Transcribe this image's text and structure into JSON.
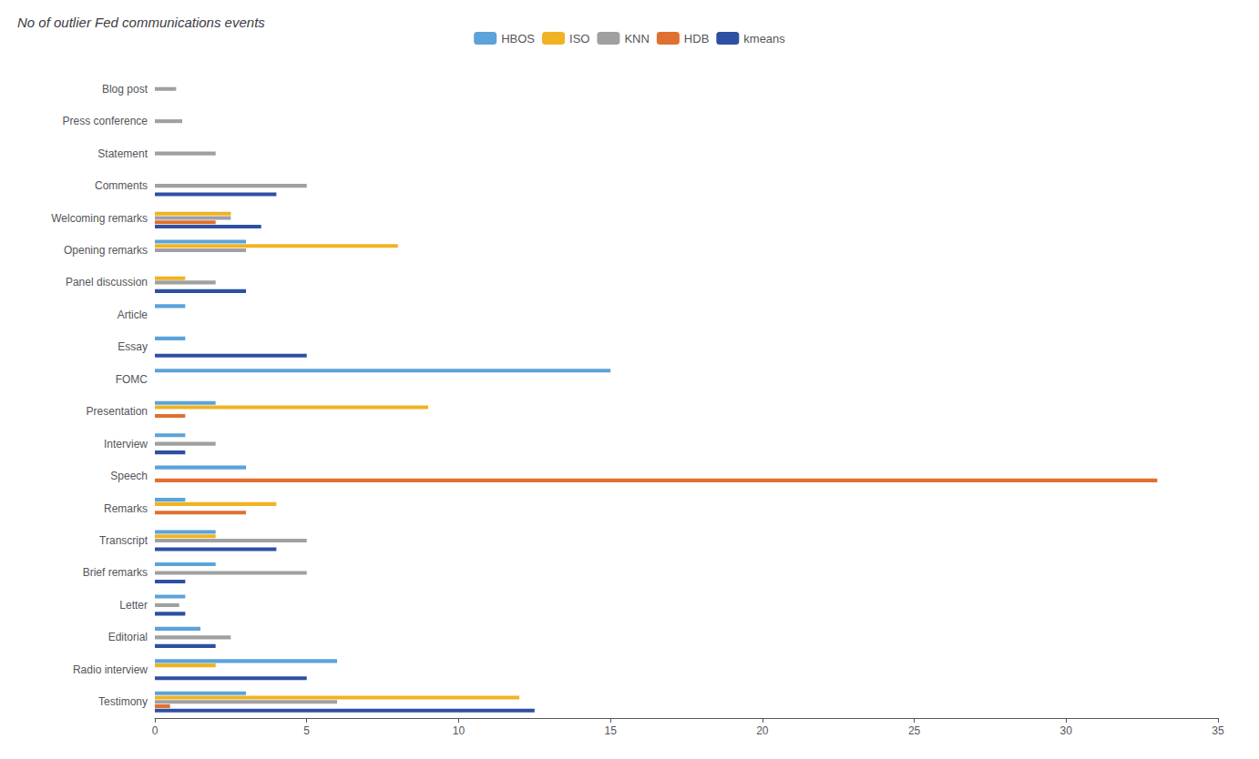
{
  "chart_data": {
    "type": "bar",
    "orientation": "horizontal",
    "title": "No of outlier Fed communications events",
    "categories": [
      "Blog post",
      "Press conference",
      "Statement",
      "Comments",
      "Welcoming remarks",
      "Opening remarks",
      "Panel discussion",
      "Article",
      "Essay",
      "FOMC",
      "Presentation",
      "Interview",
      "Speech",
      "Remarks",
      "Transcript",
      "Brief remarks",
      "Letter",
      "Editorial",
      "Radio interview",
      "Testimony"
    ],
    "series": [
      {
        "name": "HBOS",
        "color": "#5ba3d9",
        "values": [
          0,
          0,
          0,
          0,
          0,
          3.0,
          0,
          1.0,
          1.0,
          15.0,
          2.0,
          1.0,
          3.0,
          1.0,
          2.0,
          2.0,
          1.0,
          1.5,
          6.0,
          3.0
        ]
      },
      {
        "name": "ISO",
        "color": "#f0b323",
        "values": [
          0,
          0,
          0,
          0,
          2.5,
          8.0,
          1.0,
          0,
          0,
          0,
          9.0,
          0,
          0,
          4.0,
          2.0,
          0,
          0,
          0,
          2.0,
          12.0
        ]
      },
      {
        "name": "KNN",
        "color": "#a0a0a0",
        "values": [
          0.7,
          0.9,
          2.0,
          5.0,
          2.5,
          3.0,
          2.0,
          0,
          0,
          0,
          0,
          2.0,
          0,
          0,
          5.0,
          5.0,
          0.8,
          2.5,
          0,
          6.0
        ]
      },
      {
        "name": "HDB",
        "color": "#e07030",
        "values": [
          0,
          0,
          0,
          0,
          2.0,
          0,
          0,
          0,
          0,
          0,
          1.0,
          0,
          33.0,
          3.0,
          0,
          0,
          0,
          0,
          0,
          0.5
        ]
      },
      {
        "name": "kmeans",
        "color": "#2e4fa3",
        "values": [
          0,
          0,
          0,
          4.0,
          3.5,
          0,
          3.0,
          0,
          5.0,
          0,
          0,
          1.0,
          0,
          0,
          4.0,
          1.0,
          1.0,
          2.0,
          5.0,
          12.5
        ]
      }
    ],
    "xlim": [
      0,
      35
    ],
    "xticks": [
      0,
      5,
      10,
      15,
      20,
      25,
      30,
      35
    ],
    "grid": false,
    "legend": "top"
  }
}
